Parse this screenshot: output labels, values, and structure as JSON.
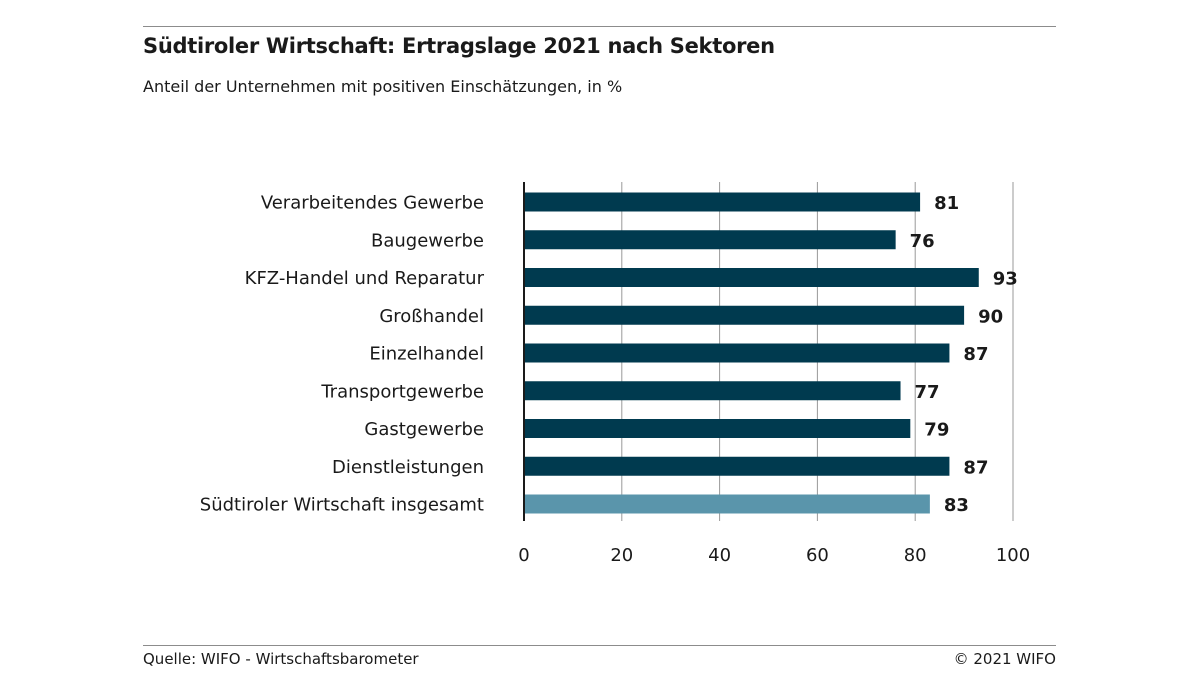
{
  "header": {
    "title": "Südtiroler Wirtschaft: Ertragslage 2021 nach Sektoren",
    "subtitle": "Anteil der Unternehmen mit positiven Einschätzungen, in %"
  },
  "footer": {
    "source": "Quelle: WIFO - Wirtschaftsbarometer",
    "copyright": "© 2021 WIFO"
  },
  "colors": {
    "bar": "#003a4f",
    "bar_highlight": "#5a95ab",
    "grid": "#999999",
    "axis": "#1a1a1a"
  },
  "chart_data": {
    "type": "bar",
    "orientation": "horizontal",
    "title": "Südtiroler Wirtschaft: Ertragslage 2021 nach Sektoren",
    "subtitle": "Anteil der Unternehmen mit positiven Einschätzungen, in %",
    "xlabel": "",
    "ylabel": "",
    "categories": [
      "Verarbeitendes Gewerbe",
      "Baugewerbe",
      "KFZ-Handel und Reparatur",
      "Großhandel",
      "Einzelhandel",
      "Transportgewerbe",
      "Gastgewerbe",
      "Dienstleistungen",
      "Südtiroler Wirtschaft insgesamt"
    ],
    "values": [
      81,
      76,
      93,
      90,
      87,
      77,
      79,
      87,
      83
    ],
    "highlight_index": 8,
    "xlim": [
      0,
      100
    ],
    "xticks": [
      0,
      20,
      40,
      60,
      80,
      100
    ],
    "grid": true,
    "legend": "none"
  }
}
